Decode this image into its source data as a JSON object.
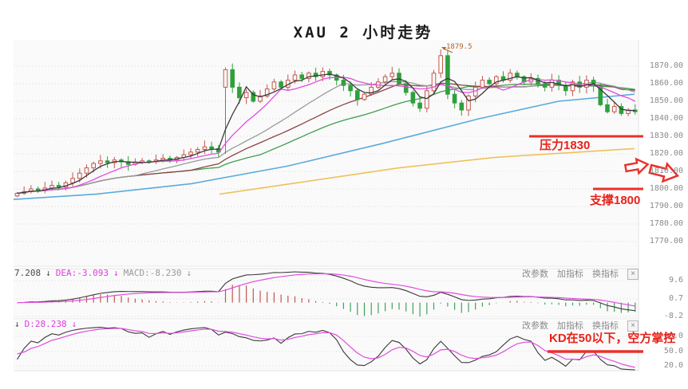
{
  "title": "XAU 2 小时走势",
  "colors": {
    "annotation_red": "#e8322a",
    "candle_up": "#c4574d",
    "candle_down": "#2fa03c",
    "ma_fast_black": "#3a3a3a",
    "ma_magenta": "#e14ce1",
    "ma_gray": "#9a9a9a",
    "ma_darkred": "#8b4444",
    "ma_green": "#3f9e52",
    "ma_blue": "#5aabdc",
    "ma_yellow": "#eec25a",
    "grid": "#d9d9d9",
    "panel_bg": "#fafafa",
    "axis_text": "#8b8b8b"
  },
  "main_chart": {
    "y_axis_labels": [
      "1870.00",
      "1860.00",
      "1850.00",
      "1840.00",
      "1830.00",
      "1820.00",
      "1810.00",
      "1800.00",
      "1790.00",
      "1780.00",
      "1770.00"
    ],
    "annotations": {
      "peak_label": "1879.5",
      "resistance_label": "压力1830",
      "support_label": "支撑1800"
    }
  },
  "toolbar": {
    "buttons": [
      "改参数",
      "加指标",
      "换指标"
    ],
    "close": "×"
  },
  "macd_panel": {
    "header": {
      "dif_value": "7.208",
      "down_arrow": "↓",
      "dea": "DEA:-3.093",
      "macd": "MACD:-8.230"
    },
    "y_axis_labels": [
      "9.6",
      "0.7",
      "-8.2"
    ]
  },
  "kd_panel": {
    "header": {
      "down_arrow": "↓",
      "d": "D:28.238"
    },
    "y_axis_labels": [
      "80.0",
      "50.0",
      "20.0"
    ],
    "annotation": "KD在50以下，空方掌控"
  },
  "chart_data": {
    "type": "candlestick+indicators",
    "symbol": "XAU",
    "interval": "2小时",
    "title": "XAU 2 小时走势",
    "price_axis": [
      1870,
      1860,
      1850,
      1840,
      1830,
      1820,
      1810,
      1800,
      1790,
      1780,
      1770
    ],
    "levels": {
      "resistance": 1830,
      "support": 1800
    },
    "peak": {
      "index": 61,
      "high": 1879.5
    },
    "spike": {
      "index": 30,
      "open": 1858,
      "low": 1820
    },
    "closes": [
      1797.5,
      1798.5,
      1800,
      1799,
      1800.5,
      1802,
      1801,
      1803.5,
      1806,
      1809,
      1812,
      1814.5,
      1816,
      1815,
      1816.5,
      1815.5,
      1814,
      1815,
      1816,
      1815.5,
      1816.5,
      1817.5,
      1816.5,
      1818,
      1819.5,
      1821,
      1822.5,
      1824,
      1823,
      1821,
      1868,
      1858,
      1852,
      1855,
      1850,
      1853,
      1857,
      1861,
      1858,
      1862,
      1865,
      1863,
      1866,
      1864,
      1867,
      1865,
      1862,
      1859,
      1856,
      1851,
      1854,
      1858,
      1861,
      1864,
      1866,
      1860,
      1855,
      1849,
      1846,
      1856,
      1866,
      1876,
      1854,
      1849,
      1845,
      1853,
      1858,
      1862,
      1860,
      1864,
      1862,
      1866,
      1864,
      1861,
      1863,
      1860,
      1858,
      1862,
      1859,
      1856,
      1861,
      1858,
      1862,
      1859,
      1848,
      1844,
      1847,
      1843,
      1845,
      1844
    ],
    "ma_lines": [
      {
        "name": "ma-green",
        "window": 36,
        "color": "#3f9e52",
        "layer": "under"
      },
      {
        "name": "ma-darkred",
        "window": 26,
        "color": "#8b4444",
        "layer": "under"
      },
      {
        "name": "ma-gray",
        "window": 18,
        "color": "#9a9a9a",
        "layer": "under"
      },
      {
        "name": "ma-magenta",
        "window": 9,
        "color": "#e14ce1",
        "layer": "over"
      },
      {
        "name": "ma-black",
        "window": 4,
        "color": "#3a3a3a",
        "layer": "over"
      }
    ],
    "blue_ma_points": [
      [
        17,
        1794
      ],
      [
        120,
        1797
      ],
      [
        240,
        1803
      ],
      [
        360,
        1813
      ],
      [
        480,
        1826
      ],
      [
        600,
        1840
      ],
      [
        700,
        1850
      ],
      [
        795,
        1854
      ]
    ],
    "yellow_ma_points": [
      [
        275,
        1797
      ],
      [
        380,
        1804
      ],
      [
        500,
        1812
      ],
      [
        620,
        1818
      ],
      [
        795,
        1823
      ]
    ],
    "macd": {
      "dif": 7.208,
      "dea": -3.093,
      "macd": -8.23,
      "y_axis": [
        9.6,
        0.7,
        -8.2
      ]
    },
    "kd": {
      "d": 28.238,
      "y_axis": [
        80.0,
        50.0,
        20.0
      ]
    }
  }
}
